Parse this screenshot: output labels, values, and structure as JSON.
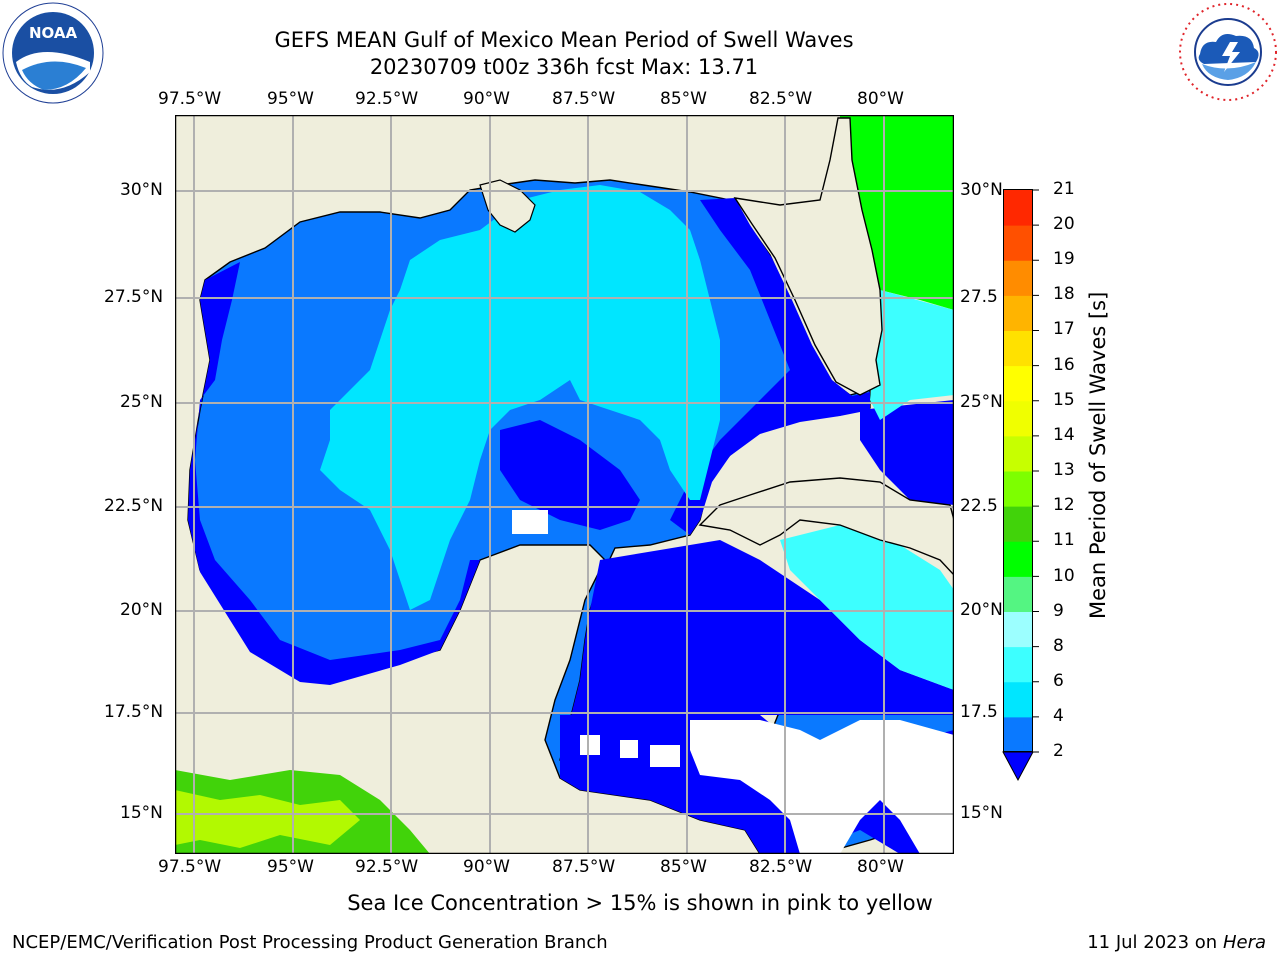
{
  "header": {
    "title_line1": "GEFS MEAN Gulf of Mexico Mean Period of Swell Waves",
    "title_line2": "20230709 t00z 336h fcst   Max: 13.71"
  },
  "logos": {
    "left": {
      "icon": "noaa-logo-icon",
      "text": "NOAA",
      "ring_text": "NATIONAL OCEANIC AND ATMOSPHERIC ADMINISTRATION · U.S. DEPARTMENT OF COMMERCE"
    },
    "right": {
      "icon": "nws-logo-icon",
      "ring_text": "NATIONAL WEATHER SERVICE"
    }
  },
  "map": {
    "lon_ticks_top": [
      "97.5°W",
      "95°W",
      "92.5°W",
      "90°W",
      "87.5°W",
      "85°W",
      "82.5°W",
      "80°W"
    ],
    "lon_ticks_bottom": [
      "97.5°W",
      "95°W",
      "92.5°W",
      "90°W",
      "87.5°W",
      "85°W",
      "82.5°W",
      "80°W"
    ],
    "lat_ticks_left": [
      "30°N",
      "27.5°N",
      "25°N",
      "22.5°N",
      "20°N",
      "17.5°N",
      "15°N"
    ],
    "lat_ticks_right": [
      "30°N",
      "27.5",
      "25°N",
      "22.5",
      "20°N",
      "17.5",
      "15°N"
    ],
    "lon_range": [
      -98,
      -79
    ],
    "lat_range": [
      14,
      31.5
    ],
    "grid": true
  },
  "colorbar": {
    "label": "Mean Period of Swell Waves [s]",
    "ticks": [
      "21",
      "20",
      "19",
      "18",
      "17",
      "16",
      "15",
      "14",
      "13",
      "12",
      "11",
      "10",
      "9",
      "8",
      "6",
      "4",
      "2"
    ],
    "levels": [
      2,
      4,
      6,
      8,
      9,
      10,
      11,
      12,
      13,
      14,
      15,
      16,
      17,
      18,
      19,
      20,
      21
    ],
    "colors": [
      "#0a79ff",
      "#00e6ff",
      "#3dffff",
      "#9cffff",
      "#54f582",
      "#00ff00",
      "#41d30a",
      "#7dff00",
      "#c7ff00",
      "#f0ff00",
      "#ffff00",
      "#ffe100",
      "#ffb400",
      "#ff8c00",
      "#ff5000",
      "#ff2800"
    ],
    "under_color": "#0000ff"
  },
  "note": "Sea Ice Concentration > 15% is shown in pink to yellow",
  "footer": {
    "left": "NCEP/EMC/Verification Post Processing Product Generation Branch",
    "date": "11 Jul 2023 on",
    "machine": "Hera"
  }
}
